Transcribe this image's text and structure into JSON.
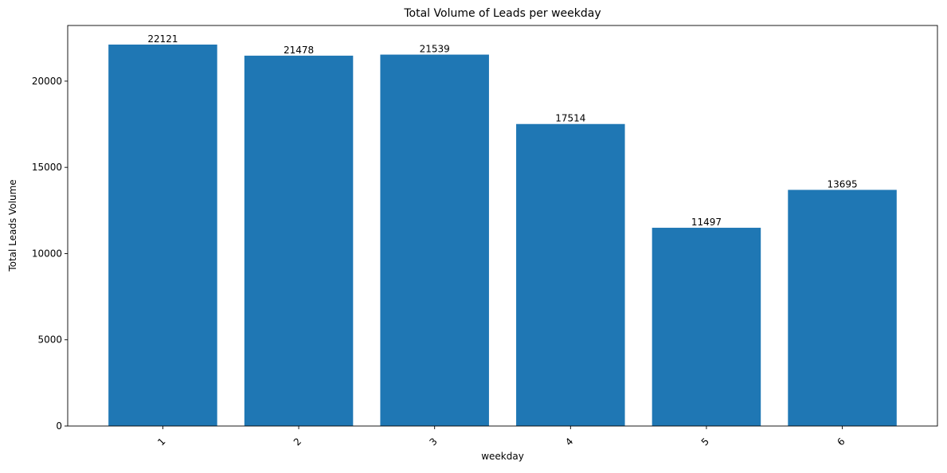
{
  "chart_data": {
    "type": "bar",
    "title": "Total Volume of Leads per weekday",
    "xlabel": "weekday",
    "ylabel": "Total Leads Volume",
    "categories": [
      "1",
      "2",
      "3",
      "4",
      "5",
      "6"
    ],
    "values": [
      22121,
      21478,
      21539,
      17514,
      11497,
      13695
    ],
    "data_labels": [
      "22121",
      "21478",
      "21539",
      "17514",
      "11497",
      "13695"
    ],
    "ylim": [
      0,
      23228
    ],
    "yticks": [
      0,
      5000,
      10000,
      15000,
      20000
    ],
    "ytick_labels": [
      "0",
      "5000",
      "10000",
      "15000",
      "20000"
    ],
    "xtick_rotation_deg": 45,
    "grid": false,
    "legend": "none",
    "bar_color": "#1f77b4"
  }
}
